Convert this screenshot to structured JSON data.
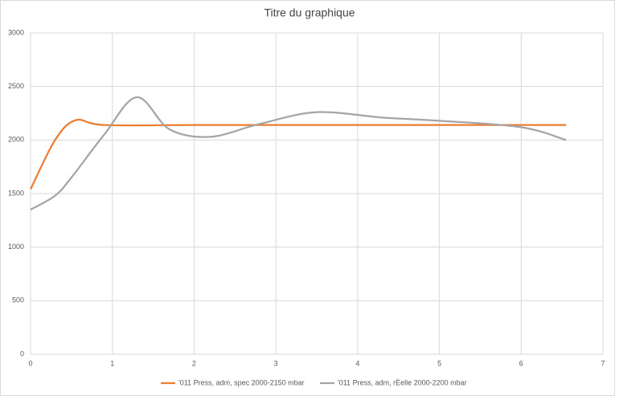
{
  "chart_data": {
    "type": "line",
    "title": "Titre du graphique",
    "xlim": [
      0,
      7
    ],
    "xticks": [
      0,
      1,
      2,
      3,
      4,
      5,
      6,
      7
    ],
    "ylim": [
      0,
      3000
    ],
    "yticks": [
      0,
      500,
      1000,
      1500,
      2000,
      2500,
      3000
    ],
    "grid": true,
    "legend": "bottom",
    "series": [
      {
        "name": "'011 Press, adm, spec 2000-2150  mbar",
        "color": "#ed7d31",
        "x": [
          0,
          0.3,
          0.55,
          0.9,
          2,
          3,
          4,
          5,
          6,
          6.55
        ],
        "values": [
          1540,
          2000,
          2185,
          2140,
          2140,
          2140,
          2140,
          2140,
          2140,
          2140
        ]
      },
      {
        "name": "'011 Press, adm, rÈelle 2000-2200  mbar",
        "color": "#a5a5a5",
        "x": [
          0,
          0.3,
          0.5,
          0.9,
          1.3,
          1.7,
          2.2,
          2.8,
          3.5,
          4.3,
          5,
          6,
          6.55
        ],
        "values": [
          1350,
          1480,
          1650,
          2050,
          2400,
          2100,
          2030,
          2150,
          2260,
          2210,
          2180,
          2120,
          2000
        ]
      }
    ]
  }
}
